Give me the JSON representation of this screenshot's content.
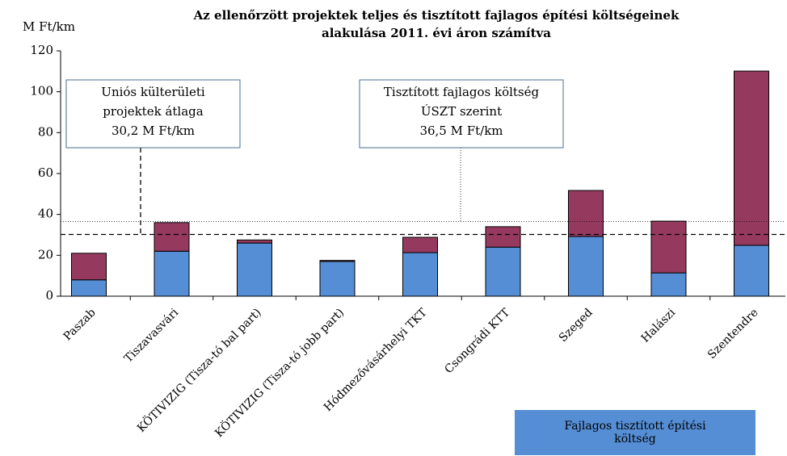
{
  "chart_data": {
    "type": "stacked_bar",
    "title": [
      "Az ellenőrzött projektek teljes és tisztított fajlagos építési költségeinek",
      "alakulása 2011. évi áron számítva"
    ],
    "y_label": "M Ft/km",
    "categories": [
      "Paszab",
      "Tiszavasvári",
      "KÖTIVIZIG (Tisza-tó bal part)",
      "KÖTIVIZIG (Tisza-tó jobb part)",
      "Hódmezővásárhelyi TKT",
      "Csongrádi KTT",
      "Szeged",
      "Halászi",
      "Szentendre"
    ],
    "series": [
      {
        "name": "Fajlagos tisztított építési költség",
        "color": "#558ed5",
        "values": [
          8,
          22,
          26,
          17,
          21.3,
          24,
          29.2,
          11.4,
          24.9
        ]
      },
      {
        "color": "#953a5e",
        "values": [
          13,
          14,
          1.5,
          0.5,
          7.5,
          10,
          22.5,
          25.3,
          85.2
        ]
      }
    ],
    "ylim": [
      0,
      120
    ],
    "yticks": [
      0,
      20,
      40,
      60,
      80,
      100,
      120
    ],
    "grid": false,
    "reference_lines": [
      {
        "value": 30.2,
        "style": "dashed",
        "label": [
          "Uniós külterületi",
          "projektek átlaga",
          "30,2 M Ft/km"
        ]
      },
      {
        "value": 36.5,
        "style": "dotted",
        "label": [
          "Tisztított fajlagos költség",
          "ÚSZT szerint",
          "36,5 M Ft/km"
        ]
      }
    ]
  }
}
